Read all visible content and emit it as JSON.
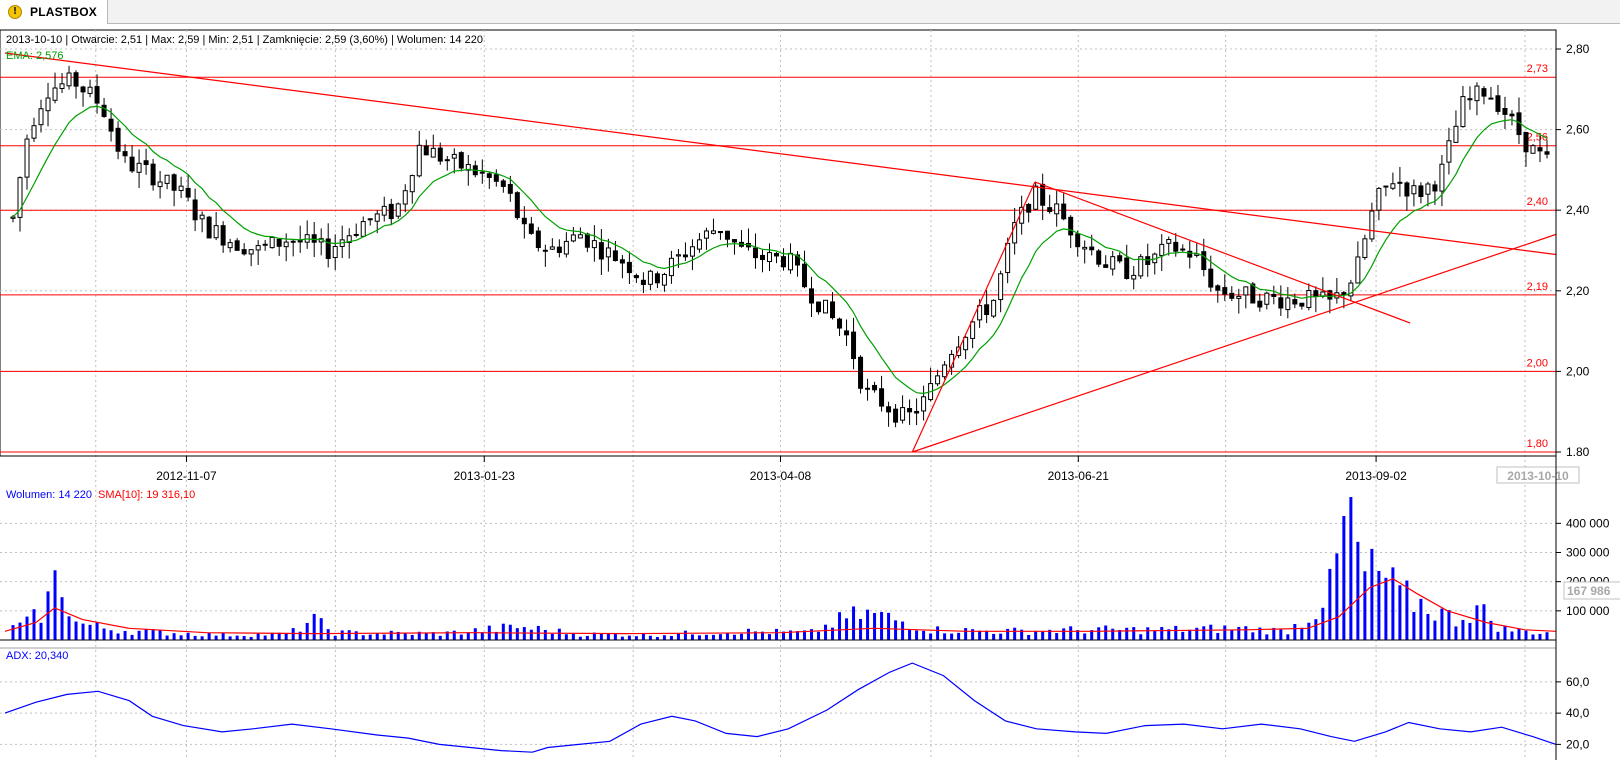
{
  "tab": {
    "title": "PLASTBOX"
  },
  "colors": {
    "up_candle": "#ffffff",
    "down_candle": "#000000",
    "ema": "#00a000",
    "support_lines": "#ff0000",
    "volume_bars": "#0000ff",
    "volume_sma": "#ff0000",
    "adx": "#0000ff",
    "grid": "#c0c0c0"
  },
  "header": {
    "info": "2013-10-10 | Otwarcie: 2,51 | Max: 2,59 | Min: 2,51 | Zamknięcie: 2,59 (3,60%) | Wolumen: 14 220",
    "ema": "EMA: 2,576"
  },
  "volume_header": {
    "wolumen": "Wolumen: 14 220",
    "sma": "SMA[10]: 19 316,10"
  },
  "adx_header": "ADX: 20,340",
  "chart_data": [
    {
      "type": "candlestick",
      "title": "PLASTBOX",
      "x_tick_labels": [
        "2012-11-07",
        "2013-01-23",
        "2013-04-08",
        "2013-06-21",
        "2013-09-02"
      ],
      "x_cursor_label": "2013-10-10",
      "y_tick_labels": [
        "2,80",
        "2,60",
        "2,40",
        "2,20",
        "2,00",
        "1.80"
      ],
      "ylim": [
        1.8,
        2.8
      ],
      "grid": true,
      "last_bar": {
        "date": "2013-10-10",
        "open": 2.51,
        "high": 2.59,
        "low": 2.51,
        "close": 2.59,
        "change_pct": 3.6,
        "volume": 14220
      },
      "horizontal_levels": [
        {
          "value": 2.73,
          "label": "2,73"
        },
        {
          "value": 2.56,
          "label": "2,56"
        },
        {
          "value": 2.4,
          "label": "2,40"
        },
        {
          "value": 2.19,
          "label": "2,19"
        },
        {
          "value": 2.0,
          "label": "2,00"
        },
        {
          "value": 1.8,
          "label": "1,80"
        }
      ],
      "trendlines": [
        {
          "from": [
            0.0,
            2.79
          ],
          "to": [
            1.0,
            2.29
          ]
        },
        {
          "from": [
            0.664,
            2.47
          ],
          "to": [
            0.906,
            2.12
          ]
        },
        {
          "from": [
            0.585,
            1.8
          ],
          "to": [
            0.664,
            2.47
          ]
        },
        {
          "from": [
            0.585,
            1.8
          ],
          "to": [
            1.0,
            2.34
          ]
        }
      ],
      "ema_last": 2.576,
      "price_path": [
        [
          0.0,
          2.38
        ],
        [
          0.01,
          2.6
        ],
        [
          0.022,
          2.7
        ],
        [
          0.04,
          2.72
        ],
        [
          0.058,
          2.66
        ],
        [
          0.072,
          2.52
        ],
        [
          0.09,
          2.49
        ],
        [
          0.11,
          2.44
        ],
        [
          0.125,
          2.36
        ],
        [
          0.145,
          2.32
        ],
        [
          0.16,
          2.3
        ],
        [
          0.18,
          2.33
        ],
        [
          0.205,
          2.3
        ],
        [
          0.228,
          2.37
        ],
        [
          0.25,
          2.4
        ],
        [
          0.265,
          2.56
        ],
        [
          0.285,
          2.52
        ],
        [
          0.305,
          2.49
        ],
        [
          0.322,
          2.45
        ],
        [
          0.335,
          2.33
        ],
        [
          0.35,
          2.3
        ],
        [
          0.37,
          2.34
        ],
        [
          0.385,
          2.3
        ],
        [
          0.4,
          2.27
        ],
        [
          0.413,
          2.22
        ],
        [
          0.425,
          2.25
        ],
        [
          0.445,
          2.32
        ],
        [
          0.46,
          2.36
        ],
        [
          0.475,
          2.3
        ],
        [
          0.49,
          2.28
        ],
        [
          0.505,
          2.28
        ],
        [
          0.515,
          2.22
        ],
        [
          0.53,
          2.15
        ],
        [
          0.545,
          2.08
        ],
        [
          0.555,
          1.95
        ],
        [
          0.568,
          1.92
        ],
        [
          0.582,
          1.88
        ],
        [
          0.595,
          1.93
        ],
        [
          0.61,
          2.05
        ],
        [
          0.625,
          2.12
        ],
        [
          0.64,
          2.18
        ],
        [
          0.652,
          2.35
        ],
        [
          0.665,
          2.44
        ],
        [
          0.68,
          2.4
        ],
        [
          0.695,
          2.33
        ],
        [
          0.712,
          2.27
        ],
        [
          0.725,
          2.25
        ],
        [
          0.74,
          2.27
        ],
        [
          0.755,
          2.31
        ],
        [
          0.77,
          2.29
        ],
        [
          0.785,
          2.2
        ],
        [
          0.8,
          2.19
        ],
        [
          0.82,
          2.18
        ],
        [
          0.84,
          2.18
        ],
        [
          0.86,
          2.17
        ],
        [
          0.875,
          2.24
        ],
        [
          0.888,
          2.42
        ],
        [
          0.9,
          2.48
        ],
        [
          0.915,
          2.44
        ],
        [
          0.93,
          2.48
        ],
        [
          0.945,
          2.66
        ],
        [
          0.96,
          2.7
        ],
        [
          0.97,
          2.66
        ],
        [
          0.98,
          2.6
        ],
        [
          0.99,
          2.55
        ],
        [
          1.0,
          2.52
        ]
      ]
    },
    {
      "type": "bar",
      "title": "Wolumen",
      "y_tick_labels": [
        "400 000",
        "300 000",
        "200 000",
        "100 000"
      ],
      "ylim": [
        0,
        480000
      ],
      "cursor_value_label": "167 986",
      "last_value": 14220,
      "sma10_last": 19316.1,
      "volume_path": [
        [
          0.0,
          40000
        ],
        [
          0.01,
          60000
        ],
        [
          0.02,
          100000
        ],
        [
          0.03,
          230000
        ],
        [
          0.04,
          60000
        ],
        [
          0.06,
          40000
        ],
        [
          0.08,
          30000
        ],
        [
          0.1,
          25000
        ],
        [
          0.14,
          18000
        ],
        [
          0.18,
          20000
        ],
        [
          0.195,
          70000
        ],
        [
          0.21,
          25000
        ],
        [
          0.28,
          22000
        ],
        [
          0.33,
          45000
        ],
        [
          0.37,
          20000
        ],
        [
          0.42,
          18000
        ],
        [
          0.47,
          30000
        ],
        [
          0.52,
          25000
        ],
        [
          0.545,
          80000
        ],
        [
          0.56,
          90000
        ],
        [
          0.6,
          35000
        ],
        [
          0.65,
          30000
        ],
        [
          0.7,
          35000
        ],
        [
          0.75,
          35000
        ],
        [
          0.8,
          40000
        ],
        [
          0.83,
          30000
        ],
        [
          0.845,
          80000
        ],
        [
          0.86,
          180000
        ],
        [
          0.87,
          450000
        ],
        [
          0.88,
          220000
        ],
        [
          0.89,
          230000
        ],
        [
          0.905,
          150000
        ],
        [
          0.92,
          120000
        ],
        [
          0.94,
          70000
        ],
        [
          0.955,
          110000
        ],
        [
          0.97,
          40000
        ],
        [
          0.985,
          30000
        ],
        [
          1.0,
          25000
        ]
      ],
      "sma_path": [
        [
          0.0,
          30000
        ],
        [
          0.02,
          60000
        ],
        [
          0.032,
          110000
        ],
        [
          0.05,
          70000
        ],
        [
          0.08,
          40000
        ],
        [
          0.13,
          25000
        ],
        [
          0.2,
          22000
        ],
        [
          0.3,
          25000
        ],
        [
          0.4,
          22000
        ],
        [
          0.5,
          25000
        ],
        [
          0.56,
          40000
        ],
        [
          0.62,
          30000
        ],
        [
          0.7,
          30000
        ],
        [
          0.8,
          35000
        ],
        [
          0.84,
          40000
        ],
        [
          0.86,
          80000
        ],
        [
          0.88,
          180000
        ],
        [
          0.895,
          210000
        ],
        [
          0.91,
          160000
        ],
        [
          0.93,
          100000
        ],
        [
          0.955,
          60000
        ],
        [
          0.98,
          35000
        ],
        [
          1.0,
          30000
        ]
      ]
    },
    {
      "type": "line",
      "title": "ADX",
      "y_tick_labels": [
        "60,0",
        "40,0",
        "20,0"
      ],
      "ylim": [
        10,
        74
      ],
      "last_value": 20.34,
      "adx_path": [
        [
          0.0,
          40
        ],
        [
          0.02,
          47
        ],
        [
          0.04,
          52
        ],
        [
          0.06,
          54
        ],
        [
          0.08,
          48
        ],
        [
          0.095,
          38
        ],
        [
          0.115,
          32
        ],
        [
          0.14,
          28
        ],
        [
          0.16,
          30
        ],
        [
          0.185,
          33
        ],
        [
          0.21,
          30
        ],
        [
          0.24,
          26
        ],
        [
          0.26,
          24
        ],
        [
          0.28,
          20
        ],
        [
          0.3,
          18
        ],
        [
          0.32,
          16
        ],
        [
          0.34,
          15
        ],
        [
          0.35,
          18
        ],
        [
          0.37,
          20
        ],
        [
          0.39,
          22
        ],
        [
          0.41,
          33
        ],
        [
          0.43,
          38
        ],
        [
          0.445,
          35
        ],
        [
          0.465,
          27
        ],
        [
          0.485,
          25
        ],
        [
          0.505,
          30
        ],
        [
          0.53,
          42
        ],
        [
          0.55,
          55
        ],
        [
          0.57,
          66
        ],
        [
          0.585,
          72
        ],
        [
          0.605,
          64
        ],
        [
          0.625,
          48
        ],
        [
          0.645,
          35
        ],
        [
          0.665,
          30
        ],
        [
          0.69,
          28
        ],
        [
          0.71,
          27
        ],
        [
          0.735,
          32
        ],
        [
          0.76,
          33
        ],
        [
          0.785,
          30
        ],
        [
          0.81,
          33
        ],
        [
          0.835,
          30
        ],
        [
          0.855,
          25
        ],
        [
          0.87,
          22
        ],
        [
          0.89,
          28
        ],
        [
          0.905,
          34
        ],
        [
          0.925,
          30
        ],
        [
          0.945,
          28
        ],
        [
          0.965,
          31
        ],
        [
          0.985,
          25
        ],
        [
          1.0,
          20
        ]
      ]
    }
  ]
}
